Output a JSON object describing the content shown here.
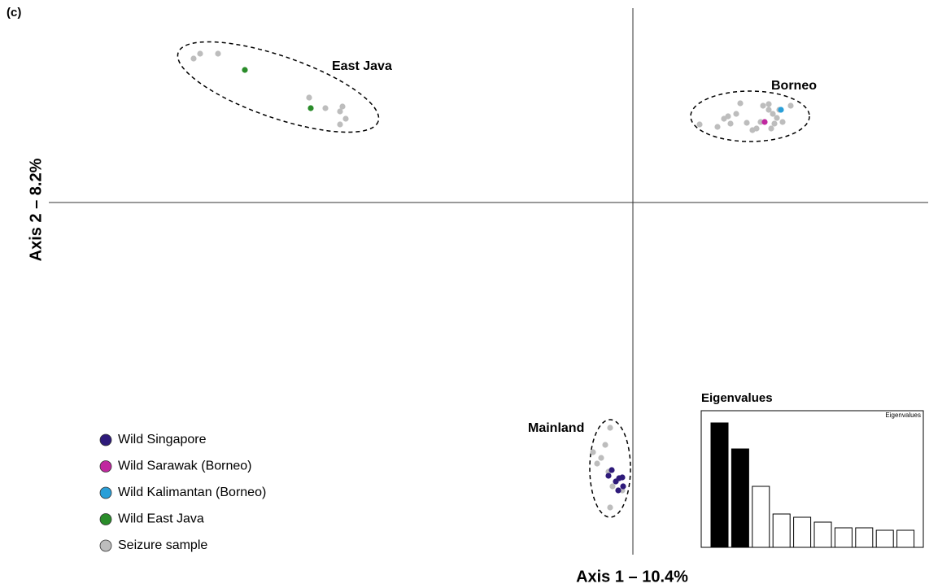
{
  "panel": "(c)",
  "chart_data": [
    {
      "type": "scatter",
      "x_label": "Axis 1 – 10.4%",
      "y_label": "Axis 2 – 8.2%",
      "xlim": [
        -14,
        7
      ],
      "ylim": [
        -8.5,
        4.5
      ],
      "annotations": [
        "East Java",
        "Borneo",
        "Mainland"
      ],
      "legend": "bottom-left",
      "series": [
        {
          "name": "Wild Singapore",
          "color": "#2e1a7a",
          "x": [
            -0.52,
            -0.6,
            -0.42,
            -0.34,
            -0.26,
            -0.24,
            -0.36
          ],
          "y": [
            -6.58,
            -6.72,
            -6.86,
            -6.78,
            -6.76,
            -6.98,
            -7.08
          ]
        },
        {
          "name": "Wild Sarawak (Borneo)",
          "color": "#c0289f",
          "x": [
            3.24
          ],
          "y": [
            1.98
          ]
        },
        {
          "name": "Wild Kalimantan (Borneo)",
          "color": "#2a9fd8",
          "x": [
            3.64
          ],
          "y": [
            2.28
          ]
        },
        {
          "name": "Wild East Java",
          "color": "#2a8c2a",
          "x": [
            -9.54,
            -7.92
          ],
          "y": [
            3.26,
            2.32
          ]
        },
        {
          "name": "Seizure sample",
          "color": "#bdbdbd",
          "x": [
            -10.8,
            -10.64,
            -10.2,
            -7.96,
            -7.56,
            -7.2,
            -7.14,
            -7.06,
            -7.2,
            1.64,
            2.08,
            2.24,
            2.34,
            2.4,
            2.54,
            2.64,
            2.8,
            2.94,
            3.04,
            3.2,
            3.34,
            3.44,
            3.54,
            3.6,
            3.68,
            3.4,
            3.14,
            3.88,
            3.34,
            3.48,
            -0.56,
            -0.68,
            -0.98,
            -0.78,
            -0.88,
            -0.6,
            -0.5,
            -0.26,
            -0.56
          ],
          "y": [
            3.54,
            3.66,
            3.66,
            2.58,
            2.32,
            2.24,
            2.36,
            2.06,
            1.92,
            1.92,
            1.86,
            2.06,
            2.12,
            1.94,
            2.18,
            2.44,
            1.96,
            1.78,
            1.82,
            2.38,
            2.28,
            2.18,
            2.08,
            2.28,
            1.98,
            1.82,
            1.98,
            2.38,
            2.42,
            1.94,
            -5.54,
            -5.96,
            -6.14,
            -6.28,
            -6.42,
            -6.62,
            -6.98,
            -7.08,
            -7.5
          ]
        }
      ]
    },
    {
      "type": "bar",
      "title": "Eigenvalues",
      "subtitle": "Eigenvalues",
      "values": [
        153,
        121,
        75,
        41,
        37,
        31,
        24,
        24,
        21,
        21
      ],
      "colors": [
        "#000000",
        "#000000",
        "#ffffff",
        "#ffffff",
        "#ffffff",
        "#ffffff",
        "#ffffff",
        "#ffffff",
        "#ffffff",
        "#ffffff"
      ],
      "ylim": [
        0,
        168
      ]
    }
  ]
}
